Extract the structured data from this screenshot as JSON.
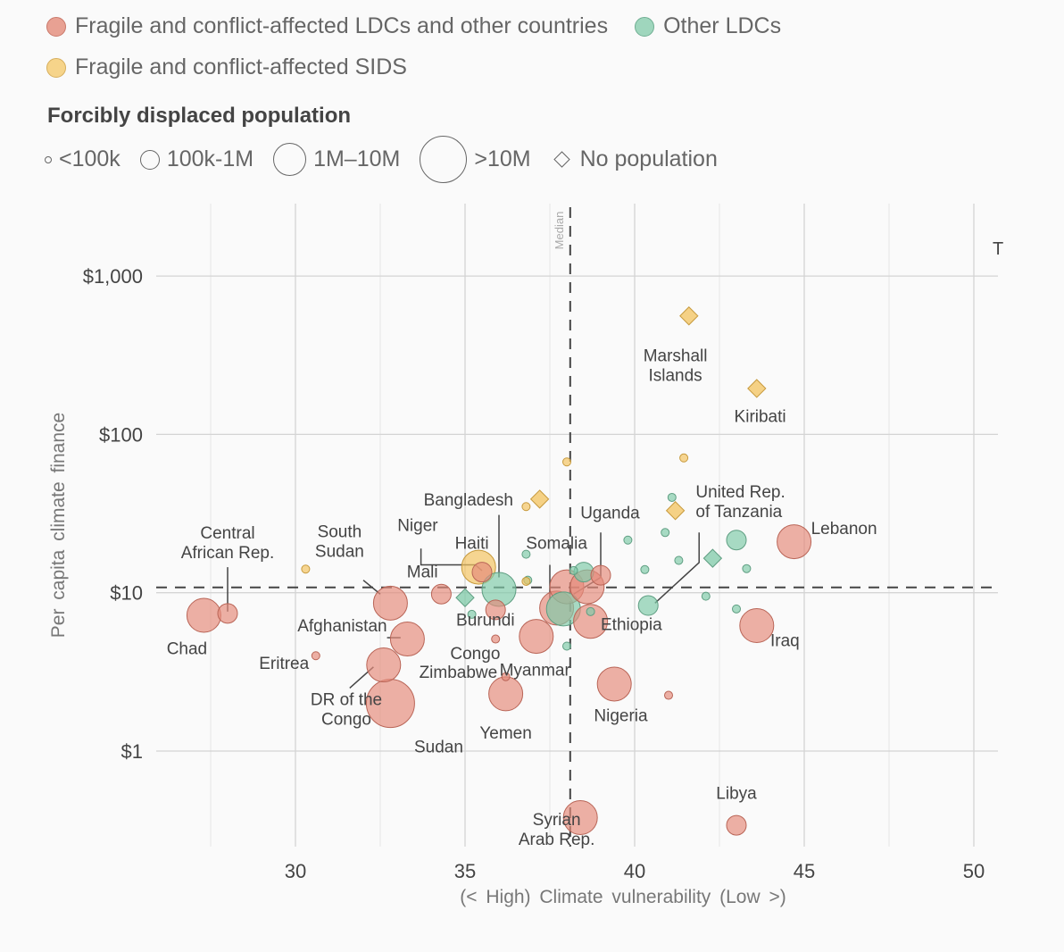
{
  "legend": {
    "groups": [
      {
        "label": "Fragile and conflict-affected LDCs and other countries",
        "color": "#e8a193",
        "stroke": "#c9786a"
      },
      {
        "label": "Other LDCs",
        "color": "#9fd6bd",
        "stroke": "#6fae92"
      },
      {
        "label": "Fragile and conflict-affected SIDS",
        "color": "#f6d48a",
        "stroke": "#d6ae5c"
      }
    ],
    "size_title": "Forcibly displaced population",
    "sizes": [
      {
        "label": "<100k"
      },
      {
        "label": "100k-1M"
      },
      {
        "label": "1M–10M"
      },
      {
        "label": ">10M"
      },
      {
        "label": "No population",
        "shape": "diamond"
      }
    ]
  },
  "clipped_text": "T",
  "chart_data": {
    "type": "scatter",
    "title": "",
    "xlabel": "(< High) Climate vulnerability (Low >)",
    "ylabel": "Per capita climate finance",
    "x_range": [
      25,
      51.5
    ],
    "y_range": [
      0.23,
      2500
    ],
    "y_scale": "log",
    "x_ticks": [
      30,
      35,
      40,
      45,
      50
    ],
    "x_tick_labels": [
      "30",
      "35",
      "40",
      "45",
      "50"
    ],
    "x_minor_gridlines": [
      27.5,
      32.5,
      37.5,
      42.5,
      47.5
    ],
    "y_ticks": [
      1,
      10,
      100,
      1000
    ],
    "y_tick_labels": [
      "$1",
      "$10",
      "$100",
      "$1,000"
    ],
    "grid": true,
    "median": {
      "label": "Median",
      "x": 38.1,
      "y": 10.8
    },
    "size_classes": [
      "<100k",
      "100k-1M",
      "1M-10M",
      ">10M",
      "none"
    ],
    "groups": {
      "fragile": "Fragile and conflict-affected LDCs and other countries",
      "ldc": "Other LDCs",
      "sids": "Fragile and conflict-affected SIDS"
    },
    "points": [
      {
        "name": "Chad",
        "x": 27.3,
        "y": 7.2,
        "group": "fragile",
        "size": "1M-10M"
      },
      {
        "name": "Central African Rep.",
        "x": 28.0,
        "y": 7.4,
        "group": "fragile",
        "size": "100k-1M"
      },
      {
        "name": "South Sudan",
        "x": 32.8,
        "y": 8.6,
        "group": "fragile",
        "size": "1M-10M"
      },
      {
        "name": "Afghanistan",
        "x": 33.3,
        "y": 5.1,
        "group": "fragile",
        "size": "1M-10M"
      },
      {
        "name": "Eritrea",
        "x": 30.6,
        "y": 4.0,
        "group": "fragile",
        "size": "<100k"
      },
      {
        "name": "DR of the Congo",
        "x": 32.6,
        "y": 3.5,
        "group": "fragile",
        "size": "1M-10M"
      },
      {
        "name": "Sudan",
        "x": 32.8,
        "y": 2.0,
        "group": "fragile",
        "size": ">10M"
      },
      {
        "name": "Mali",
        "x": 34.3,
        "y": 9.8,
        "group": "fragile",
        "size": "100k-1M"
      },
      {
        "name": "Niger",
        "x": 35.5,
        "y": 13.5,
        "group": "fragile",
        "size": "100k-1M"
      },
      {
        "name": "Haiti",
        "x": 35.4,
        "y": 14.5,
        "group": "sids",
        "size": "1M-10M"
      },
      {
        "name": "Bangladesh",
        "x": 36.0,
        "y": 10.5,
        "group": "ldc",
        "size": "1M-10M"
      },
      {
        "name": "Burundi",
        "x": 35.9,
        "y": 7.8,
        "group": "fragile",
        "size": "100k-1M"
      },
      {
        "name": "Congo",
        "x": 35.9,
        "y": 5.1,
        "group": "fragile",
        "size": "<100k"
      },
      {
        "name": "Zimbabwe",
        "x": 36.2,
        "y": 2.95,
        "group": "fragile",
        "size": "<100k"
      },
      {
        "name": "Yemen",
        "x": 36.2,
        "y": 2.3,
        "group": "fragile",
        "size": "1M-10M"
      },
      {
        "name": "Somalia",
        "x": 37.7,
        "y": 8.0,
        "group": "fragile",
        "size": "1M-10M"
      },
      {
        "name": "Myanmar",
        "x": 37.1,
        "y": 5.3,
        "group": "fragile",
        "size": "1M-10M"
      },
      {
        "name": "",
        "x": 38.0,
        "y": 10.9,
        "group": "fragile",
        "size": "1M-10M"
      },
      {
        "name": "",
        "x": 37.9,
        "y": 7.9,
        "group": "ldc",
        "size": "1M-10M"
      },
      {
        "name": "Uganda",
        "x": 38.6,
        "y": 10.9,
        "group": "fragile",
        "size": "1M-10M"
      },
      {
        "name": "",
        "x": 38.5,
        "y": 13.5,
        "group": "ldc",
        "size": "100k-1M"
      },
      {
        "name": "",
        "x": 39.0,
        "y": 12.9,
        "group": "fragile",
        "size": "100k-1M"
      },
      {
        "name": "",
        "x": 38.2,
        "y": 13.8,
        "group": "ldc",
        "size": "<100k"
      },
      {
        "name": "Ethiopia",
        "x": 38.7,
        "y": 6.6,
        "group": "fragile",
        "size": "1M-10M"
      },
      {
        "name": "",
        "x": 38.7,
        "y": 7.6,
        "group": "ldc",
        "size": "<100k"
      },
      {
        "name": "",
        "x": 38.0,
        "y": 4.6,
        "group": "ldc",
        "size": "<100k"
      },
      {
        "name": "Nigeria",
        "x": 39.4,
        "y": 2.65,
        "group": "fragile",
        "size": "1M-10M"
      },
      {
        "name": "",
        "x": 41.0,
        "y": 2.25,
        "group": "fragile",
        "size": "<100k"
      },
      {
        "name": "Syrian Arab Rep.",
        "x": 38.4,
        "y": 0.38,
        "group": "fragile",
        "size": "1M-10M"
      },
      {
        "name": "Libya",
        "x": 43.0,
        "y": 0.34,
        "group": "fragile",
        "size": "100k-1M"
      },
      {
        "name": "Iraq",
        "x": 43.6,
        "y": 6.2,
        "group": "fragile",
        "size": "1M-10M"
      },
      {
        "name": "Lebanon",
        "x": 44.7,
        "y": 21.0,
        "group": "fragile",
        "size": "1M-10M"
      },
      {
        "name": "United Rep. of Tanzania",
        "x": 40.4,
        "y": 8.3,
        "group": "ldc",
        "size": "100k-1M"
      },
      {
        "name": "",
        "x": 43.0,
        "y": 21.5,
        "group": "ldc",
        "size": "100k-1M"
      },
      {
        "name": "",
        "x": 42.3,
        "y": 16.5,
        "group": "ldc",
        "size": "none"
      },
      {
        "name": "",
        "x": 35.0,
        "y": 9.3,
        "group": "ldc",
        "size": "none"
      },
      {
        "name": "",
        "x": 35.2,
        "y": 7.3,
        "group": "ldc",
        "size": "<100k"
      },
      {
        "name": "",
        "x": 36.8,
        "y": 17.5,
        "group": "ldc",
        "size": "<100k"
      },
      {
        "name": "",
        "x": 36.85,
        "y": 12.0,
        "group": "ldc",
        "size": "<100k"
      },
      {
        "name": "",
        "x": 36.8,
        "y": 11.8,
        "group": "sids",
        "size": "<100k"
      },
      {
        "name": "",
        "x": 39.8,
        "y": 21.5,
        "group": "ldc",
        "size": "<100k"
      },
      {
        "name": "",
        "x": 40.3,
        "y": 14.0,
        "group": "ldc",
        "size": "<100k"
      },
      {
        "name": "",
        "x": 40.9,
        "y": 24.0,
        "group": "ldc",
        "size": "<100k"
      },
      {
        "name": "",
        "x": 41.1,
        "y": 40.0,
        "group": "ldc",
        "size": "<100k"
      },
      {
        "name": "",
        "x": 41.3,
        "y": 16.0,
        "group": "ldc",
        "size": "<100k"
      },
      {
        "name": "",
        "x": 42.1,
        "y": 9.5,
        "group": "ldc",
        "size": "<100k"
      },
      {
        "name": "",
        "x": 43.0,
        "y": 7.9,
        "group": "ldc",
        "size": "<100k"
      },
      {
        "name": "",
        "x": 43.3,
        "y": 14.2,
        "group": "ldc",
        "size": "<100k"
      },
      {
        "name": "",
        "x": 30.3,
        "y": 14.1,
        "group": "sids",
        "size": "<100k"
      },
      {
        "name": "",
        "x": 36.8,
        "y": 35.0,
        "group": "sids",
        "size": "<100k"
      },
      {
        "name": "",
        "x": 38.0,
        "y": 67.0,
        "group": "sids",
        "size": "<100k"
      },
      {
        "name": "",
        "x": 41.45,
        "y": 71.0,
        "group": "sids",
        "size": "<100k"
      },
      {
        "name": "",
        "x": 37.2,
        "y": 39.0,
        "group": "sids",
        "size": "none"
      },
      {
        "name": "",
        "x": 41.2,
        "y": 33.0,
        "group": "sids",
        "size": "none"
      },
      {
        "name": "Marshall Islands",
        "x": 41.6,
        "y": 560,
        "group": "sids",
        "size": "none"
      },
      {
        "name": "Kiribati",
        "x": 43.6,
        "y": 195,
        "group": "sids",
        "size": "none"
      }
    ],
    "labels": [
      {
        "text": [
          "Central",
          "African Rep."
        ],
        "x": 28.0,
        "y": 22.0,
        "anchor": "middle",
        "leader": [
          [
            28.0,
            14.5
          ],
          [
            28.0,
            7.6
          ]
        ]
      },
      {
        "text": [
          "Chad"
        ],
        "x": 26.8,
        "y": 4.1,
        "anchor": "middle"
      },
      {
        "text": [
          "South",
          "Sudan"
        ],
        "x": 31.3,
        "y": 22.5,
        "anchor": "middle",
        "leader": [
          [
            32.0,
            12.0
          ],
          [
            32.5,
            9.8
          ]
        ]
      },
      {
        "text": [
          "Afghanistan"
        ],
        "x": 32.7,
        "y": 5.7,
        "anchor": "end",
        "leader": [
          [
            32.7,
            5.2
          ],
          [
            33.1,
            5.2
          ]
        ]
      },
      {
        "text": [
          "Eritrea"
        ],
        "x": 30.4,
        "y": 3.3,
        "anchor": "end"
      },
      {
        "text": [
          "DR of the",
          "Congo"
        ],
        "x": 31.5,
        "y": 1.95,
        "anchor": "middle",
        "leader": [
          [
            31.6,
            2.5
          ],
          [
            32.3,
            3.4
          ]
        ]
      },
      {
        "text": [
          "Sudan"
        ],
        "x": 33.5,
        "y": 0.98,
        "anchor": "start"
      },
      {
        "text": [
          "Niger"
        ],
        "x": 34.2,
        "y": 24.5,
        "anchor": "end",
        "leader": [
          [
            33.7,
            19.0
          ],
          [
            33.7,
            15.0
          ],
          [
            35.3,
            15.0
          ],
          [
            35.5,
            13.8
          ]
        ]
      },
      {
        "text": [
          "Haiti"
        ],
        "x": 35.2,
        "y": 19.0,
        "anchor": "middle"
      },
      {
        "text": [
          "Mali"
        ],
        "x": 34.2,
        "y": 12.5,
        "anchor": "end"
      },
      {
        "text": [
          "Bangladesh"
        ],
        "x": 35.1,
        "y": 35.5,
        "anchor": "middle",
        "leader": [
          [
            36.0,
            31.0
          ],
          [
            36.0,
            12.5
          ]
        ]
      },
      {
        "text": [
          "Burundi"
        ],
        "x": 35.6,
        "y": 6.2,
        "anchor": "middle"
      },
      {
        "text": [
          "Congo"
        ],
        "x": 35.3,
        "y": 3.8,
        "anchor": "middle"
      },
      {
        "text": [
          "Zimbabwe"
        ],
        "x": 34.8,
        "y": 2.9,
        "anchor": "middle"
      },
      {
        "text": [
          "Myanmar"
        ],
        "x": 38.1,
        "y": 3.0,
        "anchor": "end"
      },
      {
        "text": [
          "Somalia"
        ],
        "x": 37.7,
        "y": 19.0,
        "anchor": "middle",
        "leader": [
          [
            37.5,
            15.0
          ],
          [
            37.5,
            9.0
          ]
        ]
      },
      {
        "text": [
          "Uganda"
        ],
        "x": 38.4,
        "y": 29.5,
        "anchor": "start",
        "leader": [
          [
            39.0,
            24.0
          ],
          [
            39.0,
            12.5
          ],
          [
            38.2,
            9.8
          ]
        ]
      },
      {
        "text": [
          "Ethiopia"
        ],
        "x": 39.0,
        "y": 5.8,
        "anchor": "start"
      },
      {
        "text": [
          "Nigeria"
        ],
        "x": 38.8,
        "y": 1.55,
        "anchor": "start"
      },
      {
        "text": [
          "Yemen"
        ],
        "x": 36.2,
        "y": 1.2,
        "anchor": "middle"
      },
      {
        "text": [
          "Syrian",
          "Arab Rep."
        ],
        "x": 37.7,
        "y": 0.34,
        "anchor": "middle"
      },
      {
        "text": [
          "Libya"
        ],
        "x": 43.0,
        "y": 0.5,
        "anchor": "middle"
      },
      {
        "text": [
          "Iraq"
        ],
        "x": 44.0,
        "y": 4.6,
        "anchor": "start"
      },
      {
        "text": [
          "Lebanon"
        ],
        "x": 45.2,
        "y": 23.5,
        "anchor": "start"
      },
      {
        "text": [
          "United Rep.",
          "of Tanzania"
        ],
        "x": 41.8,
        "y": 40.0,
        "anchor": "start",
        "leader": [
          [
            41.9,
            24.0
          ],
          [
            41.9,
            15.5
          ],
          [
            40.6,
            8.6
          ]
        ]
      },
      {
        "text": [
          "Marshall",
          "Islands"
        ],
        "x": 41.2,
        "y": 290,
        "anchor": "middle"
      },
      {
        "text": [
          "Kiribati"
        ],
        "x": 43.7,
        "y": 120,
        "anchor": "middle"
      }
    ]
  }
}
